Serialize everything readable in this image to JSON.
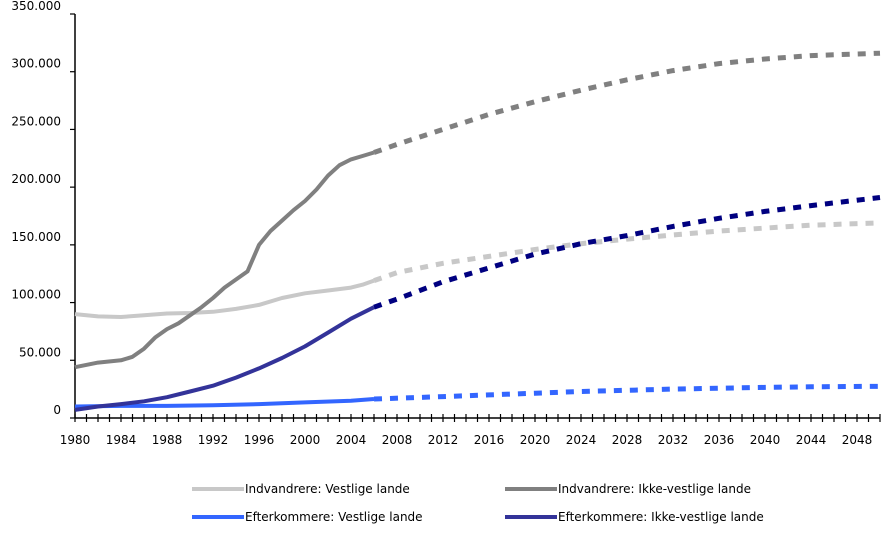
{
  "chart_data": {
    "type": "line",
    "title": "",
    "xlabel": "",
    "ylabel": "",
    "xlim": [
      1980,
      2050
    ],
    "ylim": [
      0,
      350000
    ],
    "y_ticks": [
      0,
      50000,
      100000,
      150000,
      200000,
      250000,
      300000,
      350000
    ],
    "y_tick_labels": [
      "0",
      "50.000",
      "100.000",
      "150.000",
      "200.000",
      "250.000",
      "300.000",
      "350.000"
    ],
    "x_ticks": [
      1980,
      1984,
      1988,
      1992,
      1996,
      2000,
      2004,
      2008,
      2012,
      2016,
      2020,
      2024,
      2028,
      2032,
      2036,
      2040,
      2044,
      2048
    ],
    "x_tick_labels": [
      "1980",
      "1984",
      "1988",
      "1992",
      "1996",
      "2000",
      "2004",
      "2008",
      "2012",
      "2016",
      "2020",
      "2024",
      "2028",
      "2032",
      "2036",
      "2040",
      "2044",
      "2048"
    ],
    "grid": false,
    "legend_position": "bottom",
    "series": [
      {
        "name": "Indvandrere: Vestlige lande",
        "color": "#c8c8c8",
        "observed": [
          [
            1980,
            90000
          ],
          [
            1982,
            88000
          ],
          [
            1984,
            87500
          ],
          [
            1986,
            89000
          ],
          [
            1988,
            90500
          ],
          [
            1990,
            91000
          ],
          [
            1992,
            92000
          ],
          [
            1994,
            94500
          ],
          [
            1996,
            98000
          ],
          [
            1998,
            104000
          ],
          [
            2000,
            108000
          ],
          [
            2002,
            110500
          ],
          [
            2004,
            113000
          ],
          [
            2005,
            115500
          ],
          [
            2006,
            119000
          ]
        ],
        "projected": [
          [
            2006,
            119000
          ],
          [
            2008,
            126000
          ],
          [
            2012,
            134000
          ],
          [
            2016,
            140000
          ],
          [
            2020,
            146000
          ],
          [
            2024,
            151000
          ],
          [
            2028,
            155000
          ],
          [
            2032,
            158500
          ],
          [
            2036,
            162000
          ],
          [
            2040,
            164500
          ],
          [
            2044,
            167000
          ],
          [
            2050,
            169000
          ]
        ]
      },
      {
        "name": "Indvandrere: Ikke-vestlige lande",
        "color": "#808080",
        "observed": [
          [
            1980,
            44000
          ],
          [
            1982,
            48000
          ],
          [
            1984,
            50000
          ],
          [
            1985,
            53000
          ],
          [
            1986,
            60000
          ],
          [
            1987,
            70000
          ],
          [
            1988,
            77000
          ],
          [
            1989,
            82000
          ],
          [
            1990,
            89000
          ],
          [
            1991,
            96000
          ],
          [
            1992,
            104000
          ],
          [
            1993,
            113000
          ],
          [
            1994,
            120000
          ],
          [
            1995,
            127000
          ],
          [
            1996,
            150000
          ],
          [
            1997,
            162000
          ],
          [
            1998,
            171000
          ],
          [
            1999,
            180000
          ],
          [
            2000,
            188000
          ],
          [
            2001,
            198000
          ],
          [
            2002,
            210000
          ],
          [
            2003,
            219000
          ],
          [
            2004,
            224000
          ],
          [
            2005,
            227000
          ],
          [
            2006,
            230000
          ]
        ],
        "projected": [
          [
            2006,
            230000
          ],
          [
            2008,
            237000
          ],
          [
            2012,
            250000
          ],
          [
            2016,
            263000
          ],
          [
            2020,
            274000
          ],
          [
            2024,
            284000
          ],
          [
            2028,
            293000
          ],
          [
            2032,
            301000
          ],
          [
            2036,
            307000
          ],
          [
            2040,
            311000
          ],
          [
            2044,
            314000
          ],
          [
            2050,
            316000
          ]
        ]
      },
      {
        "name": "Efterkommere: Vestlige lande",
        "color": "#3366ff",
        "observed": [
          [
            1980,
            10000
          ],
          [
            1984,
            10500
          ],
          [
            1988,
            10500
          ],
          [
            1992,
            11000
          ],
          [
            1996,
            12000
          ],
          [
            2000,
            13500
          ],
          [
            2004,
            15000
          ],
          [
            2006,
            16500
          ]
        ],
        "projected": [
          [
            2006,
            16500
          ],
          [
            2012,
            18500
          ],
          [
            2016,
            20000
          ],
          [
            2020,
            21500
          ],
          [
            2024,
            23000
          ],
          [
            2028,
            24000
          ],
          [
            2032,
            25000
          ],
          [
            2036,
            25800
          ],
          [
            2040,
            26500
          ],
          [
            2044,
            27000
          ],
          [
            2050,
            27500
          ]
        ]
      },
      {
        "name": "Efterkommere: Ikke-vestlige lande",
        "color": "#333399",
        "projected_color": "#000080",
        "observed": [
          [
            1980,
            7000
          ],
          [
            1982,
            10000
          ],
          [
            1984,
            12000
          ],
          [
            1986,
            14500
          ],
          [
            1988,
            18000
          ],
          [
            1990,
            23000
          ],
          [
            1992,
            28000
          ],
          [
            1994,
            35000
          ],
          [
            1996,
            43000
          ],
          [
            1998,
            52000
          ],
          [
            2000,
            62000
          ],
          [
            2002,
            74000
          ],
          [
            2004,
            86000
          ],
          [
            2006,
            96000
          ]
        ],
        "projected": [
          [
            2006,
            96000
          ],
          [
            2008,
            103000
          ],
          [
            2012,
            118000
          ],
          [
            2016,
            130000
          ],
          [
            2020,
            142000
          ],
          [
            2024,
            151000
          ],
          [
            2028,
            158000
          ],
          [
            2032,
            166000
          ],
          [
            2036,
            173000
          ],
          [
            2040,
            179000
          ],
          [
            2044,
            184000
          ],
          [
            2050,
            191000
          ]
        ]
      }
    ]
  }
}
